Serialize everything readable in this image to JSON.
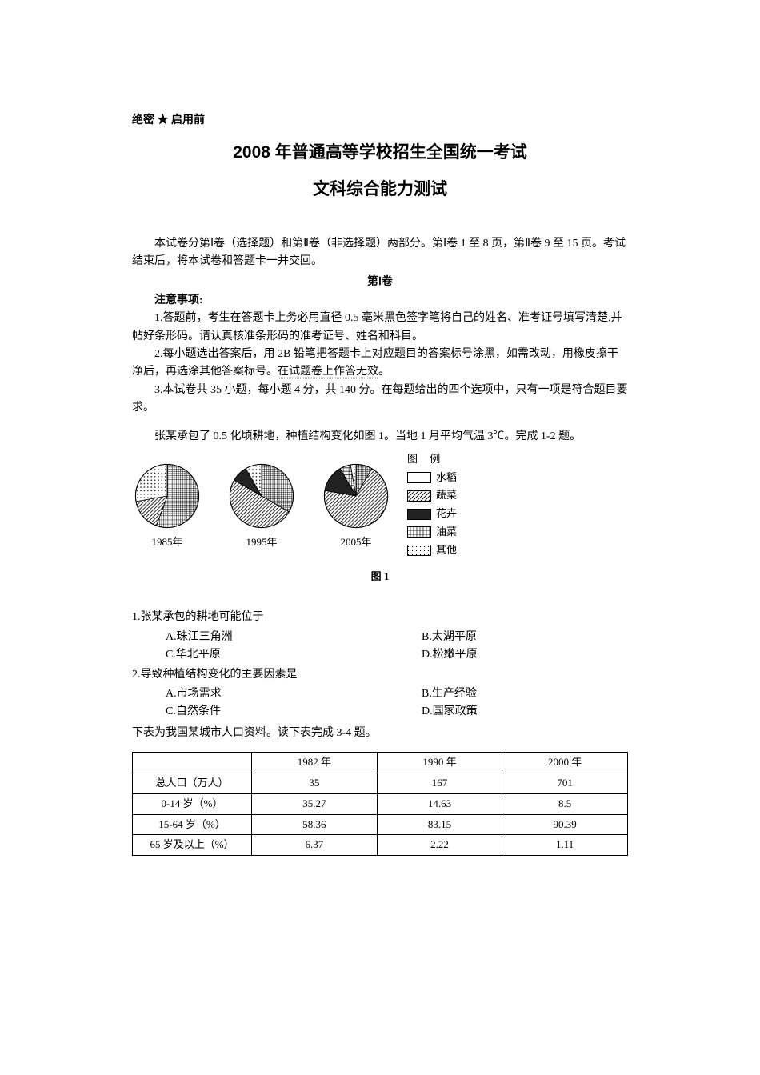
{
  "header": {
    "confidential": "绝密 ★ 启用前",
    "title": "2008 年普通高等学校招生全国统一考试",
    "subtitle": "文科综合能力测试"
  },
  "intro": "本试卷分第Ⅰ卷（选择题）和第Ⅱ卷（非选择题）两部分。第Ⅰ卷 1 至 8 页，第Ⅱ卷 9 至 15 页。考试结束后，将本试卷和答题卡一并交回。",
  "section_label": "第Ⅰ卷",
  "notes": {
    "header": "注意事项:",
    "items": [
      "1.答题前，考生在答题卡上务必用直径 0.5 毫米黑色签字笔将自己的姓名、准考证号填写清楚,并帖好条形码。请认真核准条形码的准考证号、姓名和科目。",
      "2.每小题选出答案后，用 2B 铅笔把答题卡上对应题目的答案标号涂黑，如需改动，用橡皮擦干净后，再选涂其他答案标号。",
      "3.本试卷共 35 小题，每小题 4 分，共 140 分。在每题给出的四个选项中，只有一项是符合题目要求。"
    ],
    "note2_underdot": "在试题卷上作答无效"
  },
  "passage1": "张某承包了 0.5 化顷耕地，种植结构变化如图 1。当地 1 月平均气温 3℃。完成 1-2 题。",
  "figure": {
    "pies": [
      {
        "year": "1985年",
        "slices": [
          {
            "start": 0,
            "end": 200,
            "pattern": "grid"
          },
          {
            "start": 200,
            "end": 260,
            "pattern": "hatch"
          },
          {
            "start": 260,
            "end": 360,
            "pattern": "dots"
          }
        ]
      },
      {
        "year": "1995年",
        "slices": [
          {
            "start": 0,
            "end": 120,
            "pattern": "grid"
          },
          {
            "start": 120,
            "end": 300,
            "pattern": "hatch"
          },
          {
            "start": 300,
            "end": 330,
            "pattern": "solid"
          },
          {
            "start": 330,
            "end": 360,
            "pattern": "dots"
          }
        ]
      },
      {
        "year": "2005年",
        "slices": [
          {
            "start": 0,
            "end": 30,
            "pattern": "grid"
          },
          {
            "start": 30,
            "end": 280,
            "pattern": "hatch"
          },
          {
            "start": 280,
            "end": 330,
            "pattern": "solid"
          },
          {
            "start": 330,
            "end": 350,
            "pattern": "brick"
          },
          {
            "start": 350,
            "end": 360,
            "pattern": "dots"
          }
        ]
      }
    ],
    "legend": {
      "title": "图 例",
      "items": [
        {
          "label": "水稻",
          "pattern": "blank"
        },
        {
          "label": "蔬菜",
          "pattern": "hatch"
        },
        {
          "label": "花卉",
          "pattern": "solid"
        },
        {
          "label": "油菜",
          "pattern": "brick"
        },
        {
          "label": "其他",
          "pattern": "dots2"
        }
      ]
    },
    "caption": "图 1"
  },
  "questions": [
    {
      "stem": "1.张某承包的耕地可能位于",
      "options": {
        "A": "A.珠江三角洲",
        "B": "B.太湖平原",
        "C": "C.华北平原",
        "D": "D.松嫩平原"
      }
    },
    {
      "stem": "2.导致种植结构变化的主要因素是",
      "options": {
        "A": "A.市场需求",
        "B": "B.生产经验",
        "C": "C.自然条件",
        "D": "D.国家政策"
      }
    }
  ],
  "passage2": "下表为我国某城市人口资料。读下表完成 3-4 题。",
  "table": {
    "headers": [
      "",
      "1982 年",
      "1990 年",
      "2000 年"
    ],
    "rows": [
      [
        "总人口（万人）",
        "35",
        "167",
        "701"
      ],
      [
        "0-14 岁（%）",
        "35.27",
        "14.63",
        "8.5"
      ],
      [
        "15-64 岁（%）",
        "58.36",
        "83.15",
        "90.39"
      ],
      [
        "65 岁及以上（%）",
        "6.37",
        "2.22",
        "1.11"
      ]
    ]
  }
}
